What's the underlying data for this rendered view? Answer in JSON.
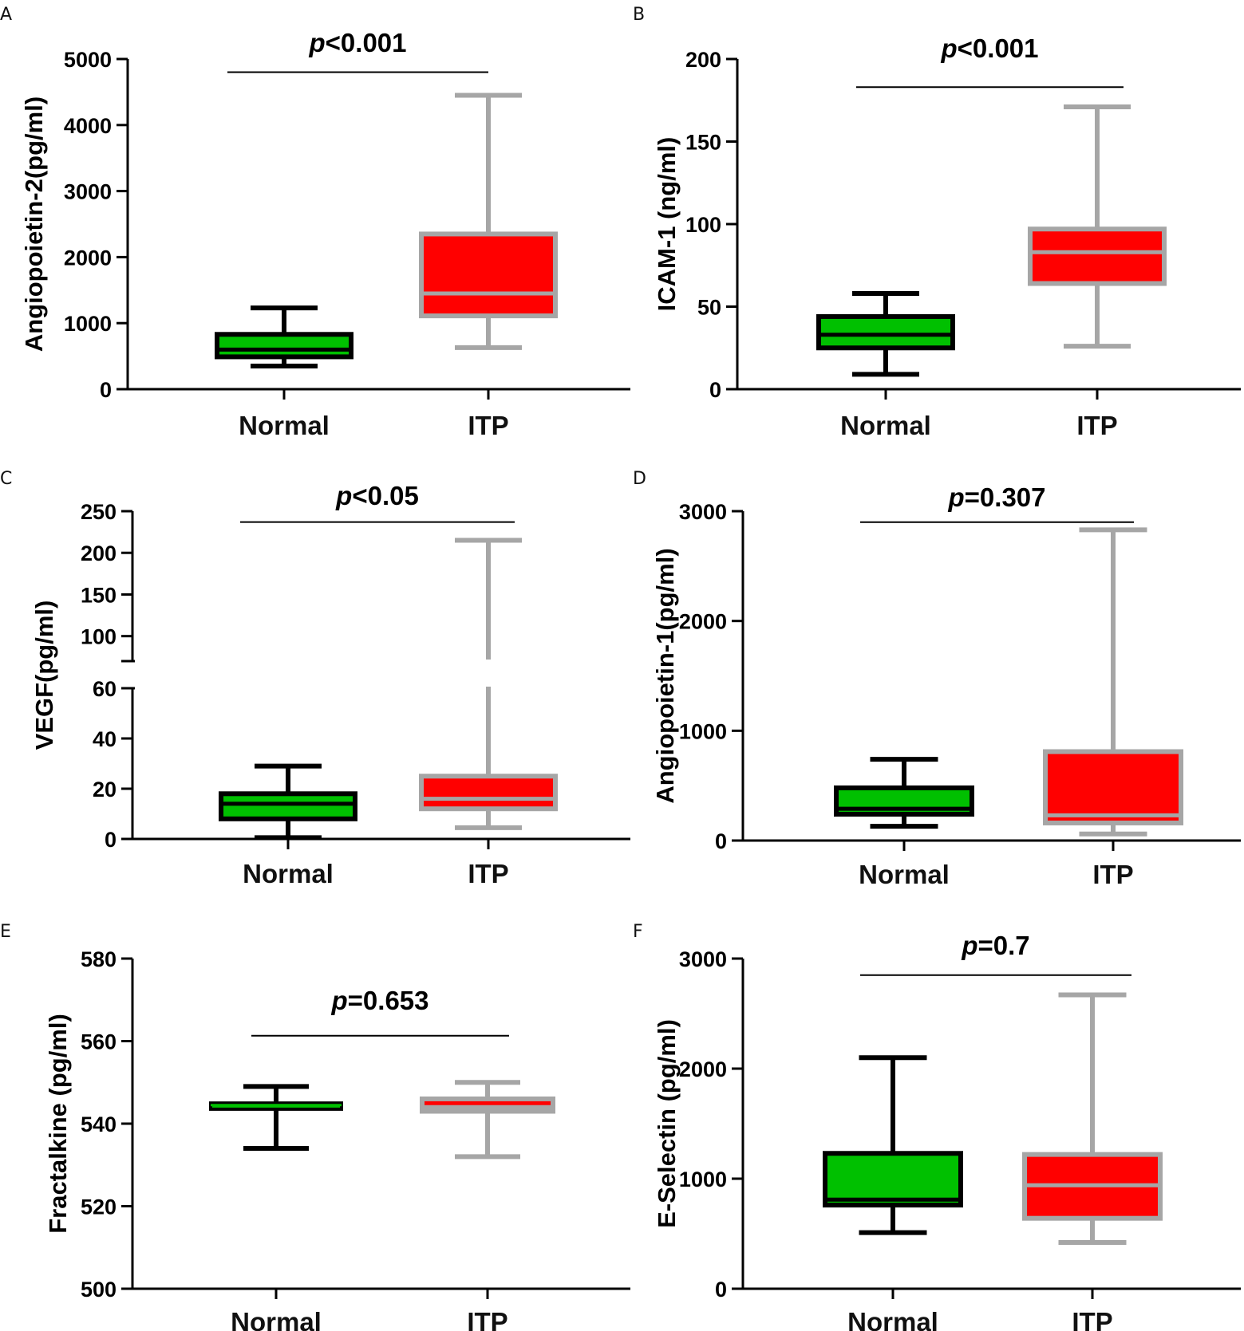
{
  "colors": {
    "normal_fill": "#00c000",
    "normal_edge": "#000000",
    "itp_fill": "#ff0000",
    "itp_edge": "#a6a6a6",
    "axis": "#000000"
  },
  "chart_data": [
    {
      "panel": "A",
      "type": "box",
      "ylabel": "Angiopoietin-2(pg/ml)",
      "categories": [
        "Normal",
        "ITP"
      ],
      "ylim": [
        0,
        5000
      ],
      "yticks": [
        0,
        1000,
        2000,
        3000,
        4000,
        5000
      ],
      "ytick_labels": [
        "0",
        "1000",
        "2000",
        "3000",
        "4000",
        "5000"
      ],
      "boxes": [
        {
          "name": "Normal",
          "min": 350,
          "q1": 490,
          "median": 600,
          "q3": 830,
          "max": 1230
        },
        {
          "name": "ITP",
          "min": 630,
          "q1": 1110,
          "median": 1450,
          "q3": 2350,
          "max": 4450
        }
      ],
      "p_prefix": "p",
      "p_rest": "<0.001",
      "p_bracket_y": 4800
    },
    {
      "panel": "B",
      "type": "box",
      "ylabel": "ICAM-1 (ng/ml)",
      "categories": [
        "Normal",
        "ITP"
      ],
      "ylim": [
        0,
        200
      ],
      "yticks": [
        0,
        50,
        100,
        150,
        200
      ],
      "ytick_labels": [
        "0",
        "50",
        "100",
        "150",
        "200"
      ],
      "boxes": [
        {
          "name": "Normal",
          "min": 9,
          "q1": 25,
          "median": 33,
          "q3": 44,
          "max": 58
        },
        {
          "name": "ITP",
          "min": 26,
          "q1": 64,
          "median": 83,
          "q3": 97,
          "max": 171
        }
      ],
      "p_prefix": "p",
      "p_rest": "<0.001",
      "p_bracket_y": 183
    },
    {
      "panel": "C",
      "type": "box",
      "ylabel": "VEGF(pg/ml)",
      "categories": [
        "Normal",
        "ITP"
      ],
      "ylim": [
        0,
        250
      ],
      "axis_break": [
        60,
        70
      ],
      "yticks": [
        0,
        20,
        40,
        60,
        100,
        150,
        200,
        250
      ],
      "ytick_labels": [
        "0",
        "20",
        "40",
        "60",
        "100",
        "150",
        "200",
        "250"
      ],
      "boxes": [
        {
          "name": "Normal",
          "min": 0.5,
          "q1": 8,
          "median": 14,
          "q3": 18,
          "max": 29
        },
        {
          "name": "ITP",
          "min": 4.5,
          "q1": 12,
          "median": 16,
          "q3": 25,
          "max": 215
        }
      ],
      "p_prefix": "p",
      "p_rest": "<0.05",
      "p_bracket_y": 237
    },
    {
      "panel": "D",
      "type": "box",
      "ylabel": "Angiopoietin-1(pg/ml)",
      "categories": [
        "Normal",
        "ITP"
      ],
      "ylim": [
        0,
        3000
      ],
      "yticks": [
        0,
        1000,
        2000,
        3000
      ],
      "ytick_labels": [
        "0",
        "1000",
        "2000",
        "3000"
      ],
      "boxes": [
        {
          "name": "Normal",
          "min": 130,
          "q1": 240,
          "median": 290,
          "q3": 480,
          "max": 740
        },
        {
          "name": "ITP",
          "min": 60,
          "q1": 160,
          "median": 230,
          "q3": 810,
          "max": 2830
        }
      ],
      "p_prefix": "p",
      "p_rest": "=0.307",
      "p_bracket_y": 2900
    },
    {
      "panel": "E",
      "type": "box",
      "ylabel": "Fractalkine (pg/ml)",
      "categories": [
        "Normal",
        "ITP"
      ],
      "ylim": [
        500,
        580
      ],
      "yticks": [
        500,
        520,
        540,
        560,
        580
      ],
      "ytick_labels": [
        "500",
        "520",
        "540",
        "560",
        "580"
      ],
      "boxes": [
        {
          "name": "Normal",
          "min": 534,
          "q1": 543.5,
          "median": 544.5,
          "q3": 545,
          "max": 549
        },
        {
          "name": "ITP",
          "min": 532,
          "q1": 543,
          "median": 544,
          "q3": 546,
          "max": 550
        }
      ],
      "p_prefix": "p",
      "p_rest": "=0.653",
      "p_bracket_y": 561.3
    },
    {
      "panel": "F",
      "type": "box",
      "ylabel": "E-Selectin (pg/ml)",
      "categories": [
        "Normal",
        "ITP"
      ],
      "ylim": [
        0,
        3000
      ],
      "yticks": [
        0,
        1000,
        2000,
        3000
      ],
      "ytick_labels": [
        "0",
        "1000",
        "2000",
        "3000"
      ],
      "boxes": [
        {
          "name": "Normal",
          "min": 510,
          "q1": 760,
          "median": 810,
          "q3": 1230,
          "max": 2100
        },
        {
          "name": "ITP",
          "min": 420,
          "q1": 640,
          "median": 940,
          "q3": 1220,
          "max": 2670
        }
      ],
      "p_prefix": "p",
      "p_rest": "=0.7",
      "p_bracket_y": 2850
    }
  ]
}
